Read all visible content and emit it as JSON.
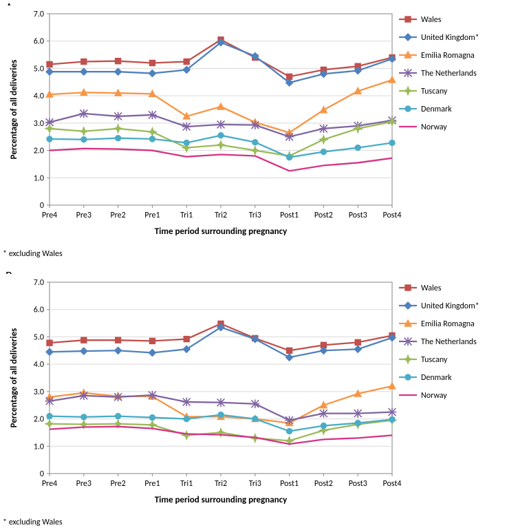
{
  "panels": {
    "A": {
      "letter": "A",
      "chart": {
        "type": "line",
        "background_color": "#ffffff",
        "plot_bg": "#ffffff",
        "plot_border_color": "#868686",
        "grid_color": "#d9d9d9",
        "categories": [
          "Pre4",
          "Pre3",
          "Pre2",
          "Pre1",
          "Tri1",
          "Tri2",
          "Tri3",
          "Post1",
          "Post2",
          "Post3",
          "Post4"
        ],
        "xlabel": "Time period surrounding pregnancy",
        "ylabel": "Percentage of all deliveries",
        "label_fontsize": 13,
        "tick_fontsize": 12,
        "ylim": [
          0,
          7.0
        ],
        "yticks": [
          0,
          "1.0",
          "2.0",
          "3.0",
          "4.0",
          "5.0",
          "6.0",
          "7.0"
        ],
        "line_width": 2.3,
        "marker_size": 4.2,
        "series": [
          {
            "name": "Wales",
            "color": "#c0504d",
            "marker": "square",
            "values": [
              5.15,
              5.25,
              5.27,
              5.2,
              5.25,
              6.05,
              5.4,
              4.7,
              4.95,
              5.08,
              5.4
            ]
          },
          {
            "name": "United Kingdom*",
            "color": "#4f81bd",
            "marker": "diamond",
            "values": [
              4.88,
              4.88,
              4.88,
              4.82,
              4.95,
              5.95,
              5.45,
              4.48,
              4.8,
              4.92,
              5.35
            ]
          },
          {
            "name": "Emilia Romagna",
            "color": "#f79646",
            "marker": "triangle",
            "values": [
              4.05,
              4.12,
              4.1,
              4.07,
              3.25,
              3.6,
              3.03,
              2.65,
              3.48,
              4.17,
              4.58
            ]
          },
          {
            "name": "The Netherlands",
            "color": "#8064a2",
            "marker": "x",
            "values": [
              3.03,
              3.35,
              3.25,
              3.3,
              2.87,
              2.95,
              2.93,
              2.5,
              2.8,
              2.9,
              3.1
            ]
          },
          {
            "name": "Tuscany",
            "color": "#9bbb59",
            "marker": "star",
            "values": [
              2.8,
              2.7,
              2.8,
              2.68,
              2.1,
              2.2,
              2.0,
              1.8,
              2.4,
              2.8,
              3.05
            ]
          },
          {
            "name": "Denmark",
            "color": "#4bacc6",
            "marker": "circle",
            "values": [
              2.42,
              2.4,
              2.45,
              2.42,
              2.28,
              2.55,
              2.3,
              1.75,
              1.95,
              2.1,
              2.28
            ]
          },
          {
            "name": "Norway",
            "color": "#d63384",
            "marker": "none",
            "values": [
              2.0,
              2.07,
              2.05,
              2.0,
              1.77,
              1.85,
              1.8,
              1.25,
              1.45,
              1.55,
              1.72
            ]
          }
        ]
      }
    },
    "B": {
      "letter": "B",
      "chart": {
        "type": "line",
        "background_color": "#ffffff",
        "plot_bg": "#ffffff",
        "plot_border_color": "#868686",
        "grid_color": "#d9d9d9",
        "categories": [
          "Pre4",
          "Pre3",
          "Pre2",
          "Pre1",
          "Tri1",
          "Tri2",
          "Tri3",
          "Post1",
          "Post2",
          "Post3",
          "Post4"
        ],
        "xlabel": "Time period surrounding pregnancy",
        "ylabel": "Percentage of all deliveries",
        "label_fontsize": 13,
        "tick_fontsize": 12,
        "ylim": [
          0,
          7.0
        ],
        "yticks": [
          0,
          "1.0",
          "2.0",
          "3.0",
          "4.0",
          "5.0",
          "6.0",
          "7.0"
        ],
        "line_width": 2.3,
        "marker_size": 4.2,
        "series": [
          {
            "name": "Wales",
            "color": "#c0504d",
            "marker": "square",
            "values": [
              4.78,
              4.88,
              4.88,
              4.85,
              4.92,
              5.48,
              4.95,
              4.5,
              4.7,
              4.8,
              5.05
            ]
          },
          {
            "name": "United Kingdom*",
            "color": "#4f81bd",
            "marker": "diamond",
            "values": [
              4.45,
              4.48,
              4.5,
              4.42,
              4.55,
              5.35,
              4.92,
              4.25,
              4.5,
              4.55,
              4.97
            ]
          },
          {
            "name": "Emilia Romagna",
            "color": "#f79646",
            "marker": "triangle",
            "values": [
              2.8,
              2.95,
              2.83,
              2.82,
              2.08,
              2.08,
              2.0,
              1.85,
              2.5,
              2.92,
              3.2
            ]
          },
          {
            "name": "The Netherlands",
            "color": "#8064a2",
            "marker": "x",
            "values": [
              2.65,
              2.85,
              2.8,
              2.87,
              2.62,
              2.6,
              2.55,
              1.95,
              2.2,
              2.2,
              2.25
            ]
          },
          {
            "name": "Tuscany",
            "color": "#9bbb59",
            "marker": "star",
            "values": [
              1.82,
              1.8,
              1.82,
              1.78,
              1.4,
              1.5,
              1.3,
              1.2,
              1.58,
              1.8,
              1.95
            ]
          },
          {
            "name": "Denmark",
            "color": "#4bacc6",
            "marker": "circle",
            "values": [
              2.1,
              2.07,
              2.1,
              2.05,
              2.0,
              2.15,
              2.0,
              1.55,
              1.75,
              1.85,
              1.98
            ]
          },
          {
            "name": "Norway",
            "color": "#d63384",
            "marker": "none",
            "values": [
              1.62,
              1.7,
              1.72,
              1.65,
              1.45,
              1.42,
              1.32,
              1.08,
              1.25,
              1.3,
              1.4
            ]
          }
        ]
      }
    }
  },
  "footnote": "* excluding Wales"
}
